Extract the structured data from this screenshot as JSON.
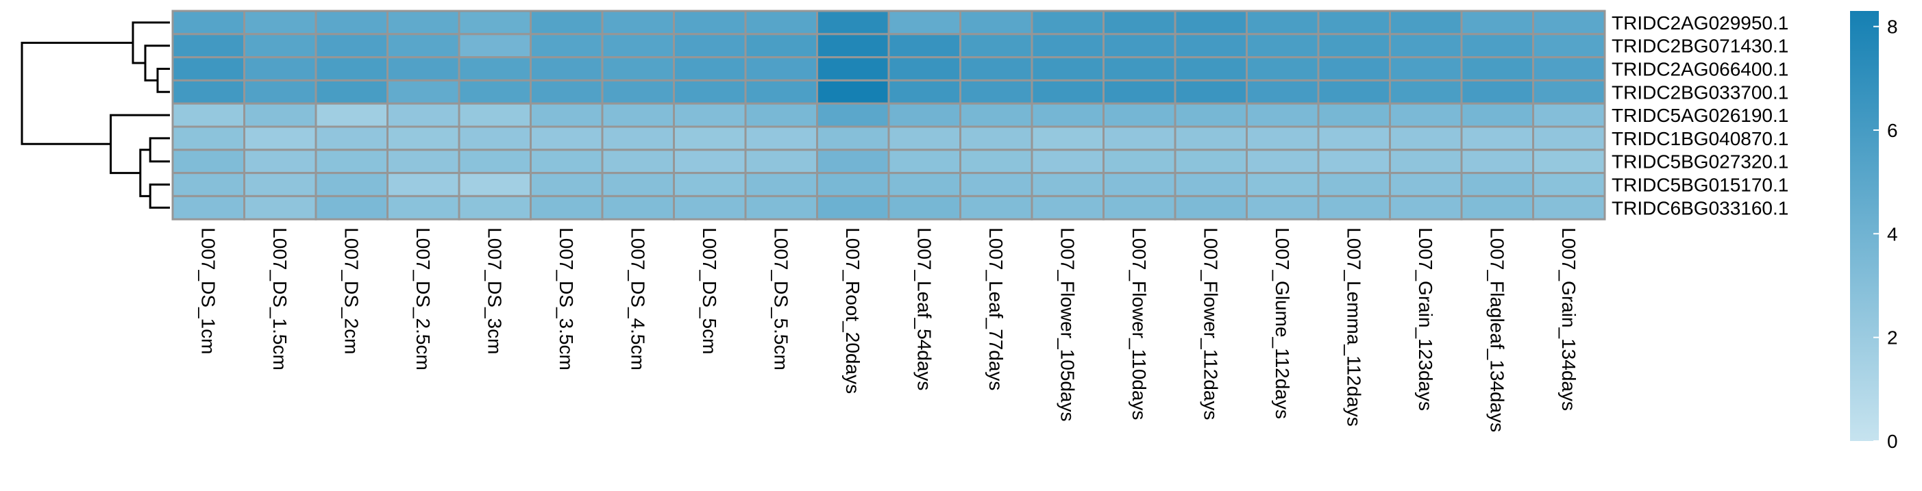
{
  "chart_data": {
    "type": "heatmap",
    "title": "",
    "xlabel": "",
    "ylabel": "",
    "rows": [
      "TRIDC2AG029950.1",
      "TRIDC2BG071430.1",
      "TRIDC2AG066400.1",
      "TRIDC2BG033700.1",
      "TRIDC5AG026190.1",
      "TRIDC1BG040870.1",
      "TRIDC5BG027320.1",
      "TRIDC5BG015170.1",
      "TRIDC6BG033160.1"
    ],
    "columns": [
      "L007_DS_1cm",
      "L007_DS_1.5cm",
      "L007_DS_2cm",
      "L007_DS_2.5cm",
      "L007_DS_3cm",
      "L007_DS_3.5cm",
      "L007_DS_4.5cm",
      "L007_DS_5cm",
      "L007_DS_5.5cm",
      "L007_Root_20days",
      "L007_Leaf_54days",
      "L007_Leaf_77days",
      "L007_Flower_105days",
      "L007_Flower_110days",
      "L007_Flower_112days",
      "L007_Glume_112days",
      "L007_Lemma_112days",
      "L007_Grain_123days",
      "L007_Flagleaf_134days",
      "L007_Grain_134days"
    ],
    "values": [
      [
        5.3,
        4.8,
        5.0,
        4.8,
        4.4,
        5.4,
        5.1,
        5.3,
        5.2,
        7.3,
        4.7,
        5.1,
        5.9,
        6.3,
        6.4,
        5.8,
        5.8,
        5.8,
        5.1,
        5.0
      ],
      [
        6.2,
        5.2,
        5.6,
        5.1,
        3.9,
        5.3,
        5.3,
        5.6,
        5.8,
        7.7,
        6.7,
        5.9,
        6.1,
        6.1,
        6.1,
        5.8,
        5.9,
        5.7,
        5.7,
        5.3
      ],
      [
        6.4,
        5.5,
        5.8,
        5.5,
        5.4,
        5.5,
        5.4,
        5.7,
        5.6,
        7.9,
        6.6,
        6.2,
        6.3,
        6.3,
        6.3,
        5.9,
        6.0,
        5.7,
        5.9,
        5.6
      ],
      [
        6.2,
        5.5,
        5.9,
        4.7,
        5.4,
        5.5,
        5.5,
        5.7,
        5.7,
        8.3,
        6.4,
        6.1,
        6.4,
        6.5,
        6.5,
        6.0,
        6.1,
        5.8,
        6.0,
        5.5
      ],
      [
        2.3,
        3.0,
        1.8,
        2.5,
        2.3,
        3.2,
        3.2,
        3.2,
        3.6,
        5.0,
        4.0,
        3.7,
        3.8,
        3.8,
        3.7,
        3.5,
        3.7,
        3.5,
        3.8,
        3.1
      ],
      [
        2.7,
        2.0,
        2.5,
        2.3,
        2.5,
        2.4,
        2.5,
        2.3,
        2.4,
        3.0,
        2.6,
        2.6,
        2.3,
        2.5,
        2.6,
        2.5,
        2.4,
        2.5,
        2.4,
        2.5
      ],
      [
        3.3,
        2.5,
        2.8,
        2.6,
        2.8,
        2.8,
        2.6,
        2.4,
        2.6,
        3.9,
        2.8,
        2.7,
        2.5,
        2.7,
        2.7,
        2.5,
        2.4,
        2.6,
        2.5,
        2.3
      ],
      [
        3.0,
        2.6,
        3.2,
        2.0,
        1.7,
        3.0,
        3.0,
        2.8,
        3.2,
        3.6,
        3.3,
        3.1,
        3.0,
        3.1,
        3.1,
        2.8,
        3.0,
        2.9,
        3.2,
        2.8
      ],
      [
        3.1,
        2.6,
        3.5,
        2.8,
        2.7,
        3.3,
        3.3,
        3.2,
        3.3,
        4.2,
        3.7,
        3.3,
        3.2,
        3.3,
        3.4,
        3.1,
        3.2,
        3.1,
        3.3,
        3.0
      ]
    ],
    "color_scale": {
      "min": 0,
      "max": 8.3,
      "low_color": "#c6e3ef",
      "high_color": "#1580b3",
      "ticks": [
        0,
        2,
        4,
        6,
        8
      ]
    },
    "row_dendrogram": {
      "merges": [
        [
          2,
          3,
          0.05
        ],
        [
          1,
          2,
          0.1
        ],
        [
          0,
          1,
          0.15
        ],
        [
          5,
          6,
          0.08
        ],
        [
          7,
          8,
          0.08
        ],
        [
          5,
          7,
          0.12
        ],
        [
          4,
          5,
          0.24
        ],
        [
          0,
          4,
          0.6
        ]
      ]
    },
    "column_labels_rotation": "90-degrees-clockwise",
    "legend": "right"
  }
}
